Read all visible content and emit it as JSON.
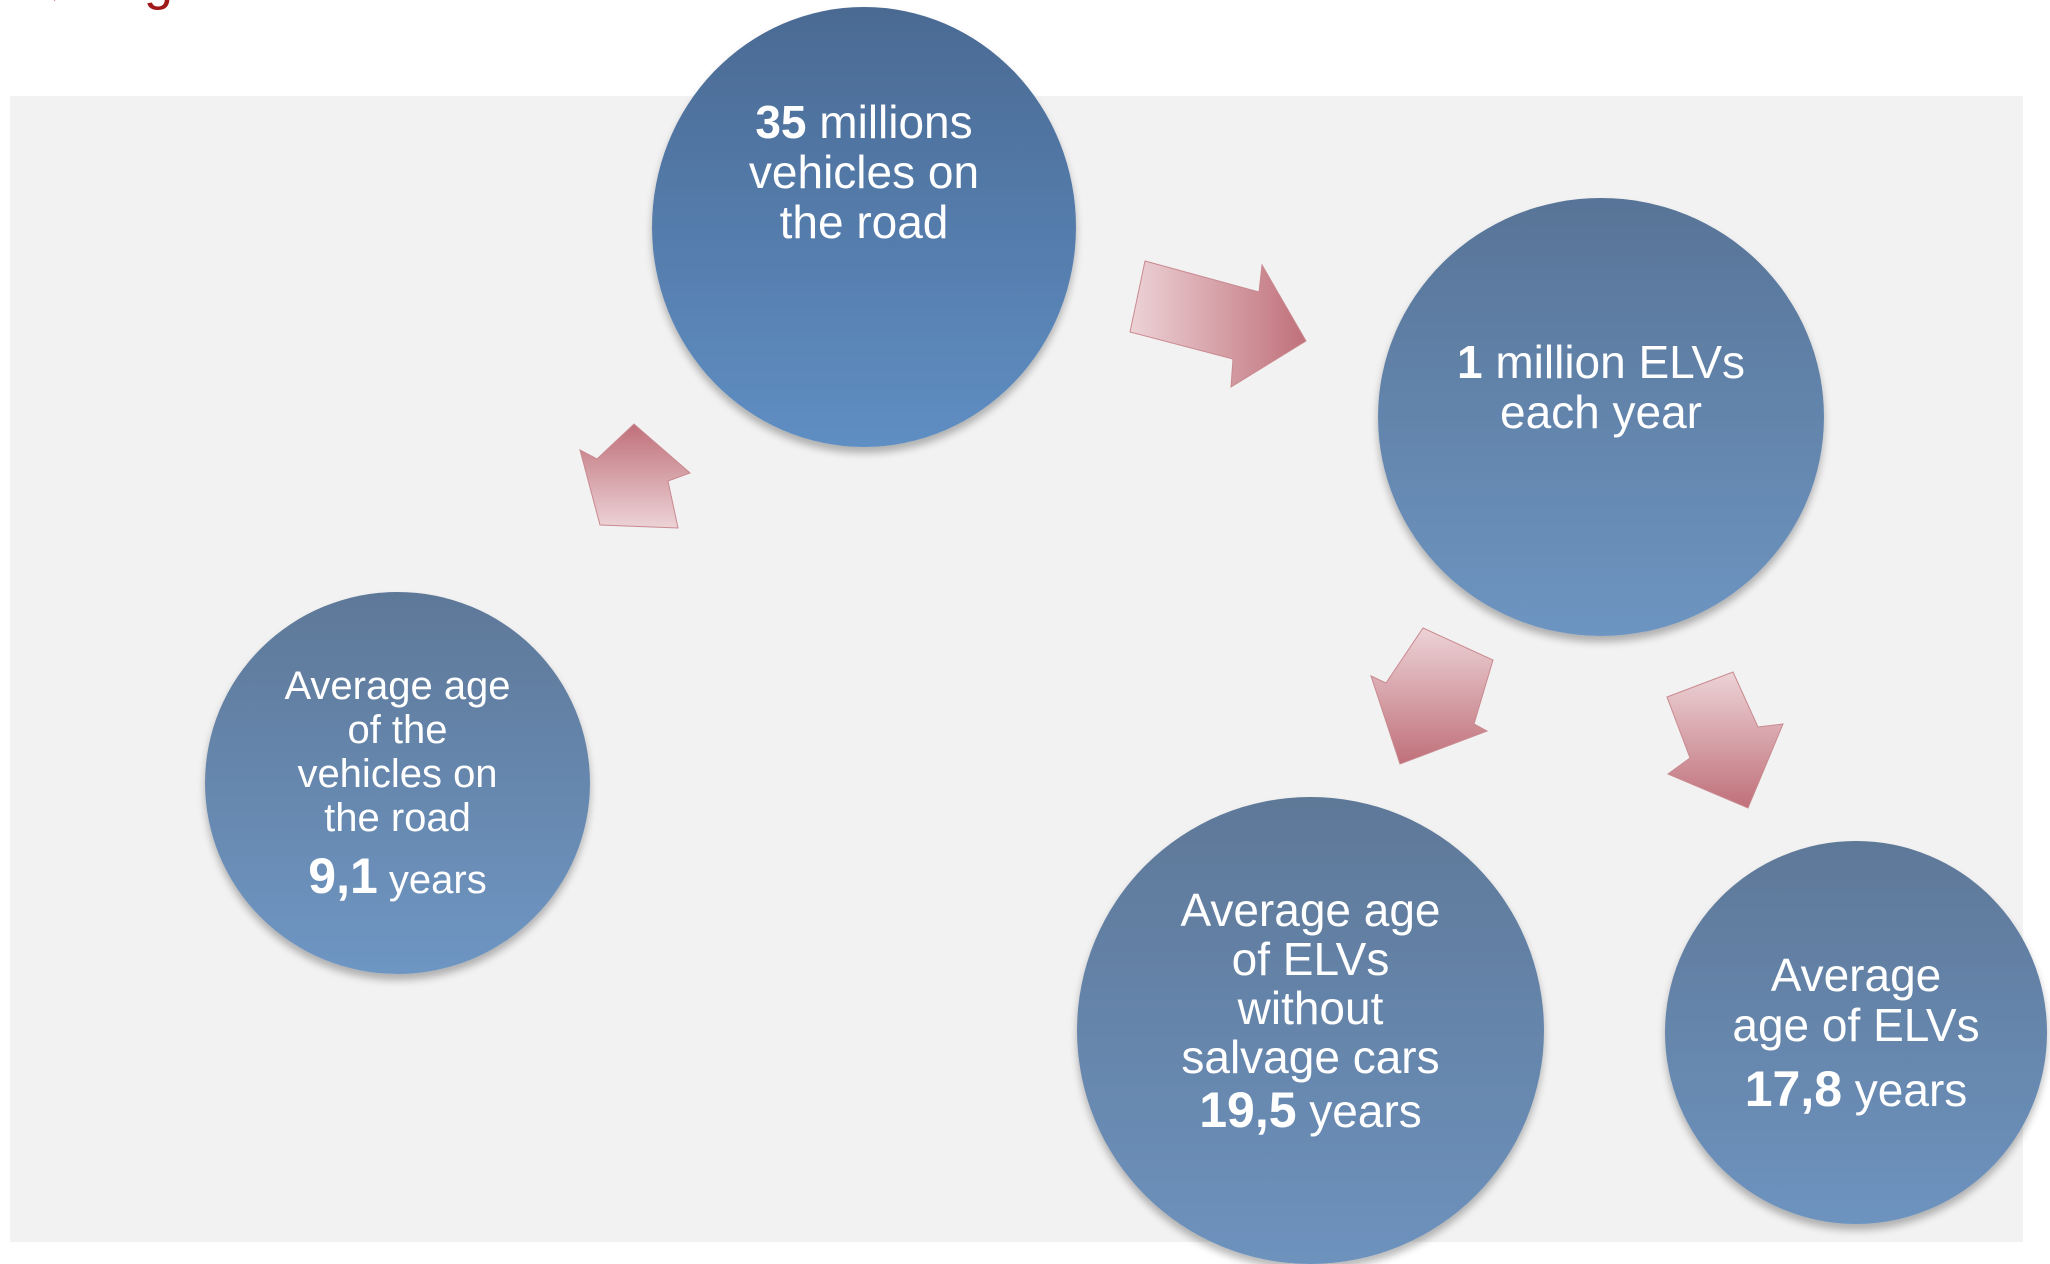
{
  "header": {
    "title_fragment": "g"
  },
  "nodes": {
    "vehicles_on_road": {
      "number": "35",
      "line1_rest": " millions",
      "line2": "vehicles on",
      "line3": "the road"
    },
    "elvs_per_year": {
      "number": "1",
      "line1_rest": " million ELVs",
      "line2": "each year"
    },
    "avg_age_road": {
      "line1": "Average age",
      "line2": "of the",
      "line3": "vehicles on",
      "line4": "the road",
      "value": "9,1",
      "unit": " years"
    },
    "avg_age_elvs_no_salvage": {
      "line1": "Average age",
      "line2": "of ELVs",
      "line3": "without",
      "line4": "salvage cars",
      "value": "19,5",
      "unit": " years"
    },
    "avg_age_elvs": {
      "line1": "Average",
      "line2": "age of ELVs",
      "value": "17,8",
      "unit": " years"
    }
  },
  "colors": {
    "panel_background": "#f2f2f2",
    "circle_dark": "#4a6a93",
    "circle_light": "#6e96c3",
    "arrow_dark": "#c0707a",
    "arrow_light": "#ecd3d6",
    "title_accent": "#a01818"
  }
}
